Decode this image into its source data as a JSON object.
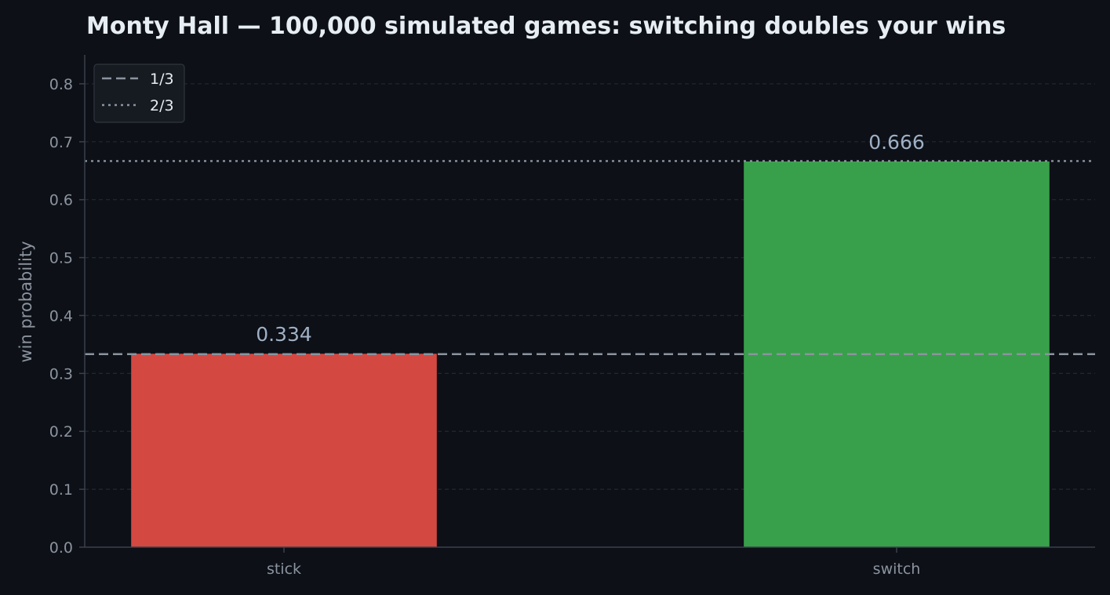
{
  "chart_data": {
    "type": "bar",
    "title": "Monty Hall — 100,000 simulated games: switching doubles your wins",
    "xlabel": "",
    "ylabel": "win probability",
    "categories": [
      "stick",
      "switch"
    ],
    "values": [
      0.334,
      0.666
    ],
    "value_labels": [
      "0.334",
      "0.666"
    ],
    "bar_colors": [
      "#d44842",
      "#38a04a"
    ],
    "ylim": [
      0,
      0.85
    ],
    "yticks": [
      0.0,
      0.1,
      0.2,
      0.3,
      0.4,
      0.5,
      0.6,
      0.7,
      0.8
    ],
    "ytick_labels": [
      "0.0",
      "0.1",
      "0.2",
      "0.3",
      "0.4",
      "0.5",
      "0.6",
      "0.7",
      "0.8"
    ],
    "grid": "horizontal dashed",
    "reference_lines": [
      {
        "label": "1/3",
        "value": 0.3333,
        "style": "dashed",
        "color": "#8b949e"
      },
      {
        "label": "2/3",
        "value": 0.6667,
        "style": "dotted",
        "color": "#8b949e"
      }
    ],
    "legend_position": "top-left"
  },
  "theme": {
    "background": "#0d1017",
    "axis_color": "#3a414b",
    "grid_color": "#232830",
    "legend_bg": "#161b22",
    "legend_border": "#30363d"
  }
}
